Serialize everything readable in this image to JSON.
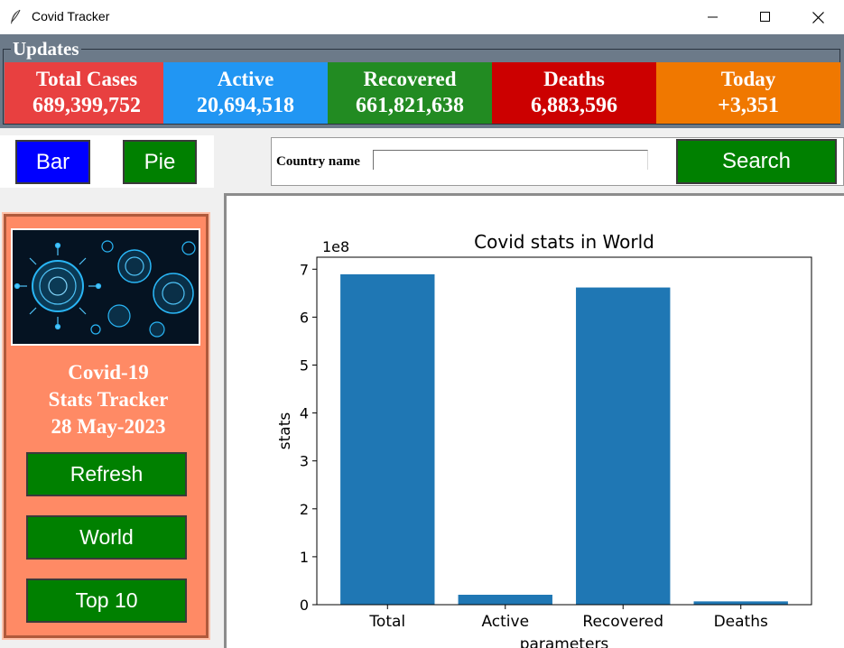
{
  "window": {
    "title": "Covid Tracker",
    "icons": {
      "app": "feather-icon",
      "minimize": "minimize-icon",
      "maximize": "maximize-icon",
      "close": "close-icon"
    }
  },
  "updates": {
    "label": "Updates",
    "stats": [
      {
        "label": "Total Cases",
        "value": "689,399,752",
        "color": "#e84040"
      },
      {
        "label": "Active",
        "value": "20,694,518",
        "color": "#2196f3"
      },
      {
        "label": "Recovered",
        "value": "661,821,638",
        "color": "#228b22"
      },
      {
        "label": "Deaths",
        "value": "6,883,596",
        "color": "#cc0000"
      },
      {
        "label": "Today",
        "value": "+3,351",
        "color": "#f07800"
      }
    ]
  },
  "chart_type_buttons": {
    "bar": {
      "label": "Bar",
      "color": "#0000ff"
    },
    "pie": {
      "label": "Pie",
      "color": "#008000"
    }
  },
  "search": {
    "label": "Country name",
    "value": "",
    "button_label": "Search",
    "button_color": "#008000"
  },
  "sidebar": {
    "image": "coronavirus-image",
    "tracker_title_line1": "Covid-19",
    "tracker_title_line2": "Stats Tracker",
    "tracker_date": "28 May-2023",
    "buttons": [
      {
        "label": "Refresh"
      },
      {
        "label": "World"
      },
      {
        "label": "Top 10"
      }
    ],
    "button_color": "#008000",
    "panel_color": "#ff8a65"
  },
  "chart_data": {
    "type": "bar",
    "title": "Covid stats in World",
    "xlabel": "parameters",
    "ylabel": "stats",
    "offset_label": "1e8",
    "categories": [
      "Total",
      "Active",
      "Recovered",
      "Deaths"
    ],
    "values": [
      689399752,
      20694518,
      661821638,
      6883596
    ],
    "ylim": [
      0,
      725000000
    ],
    "yticks": [
      0,
      1,
      2,
      3,
      4,
      5,
      6,
      7
    ],
    "ytick_labels": [
      "0",
      "1",
      "2",
      "3",
      "4",
      "5",
      "6",
      "7"
    ],
    "grid": false,
    "bar_color": "#1f77b4"
  }
}
